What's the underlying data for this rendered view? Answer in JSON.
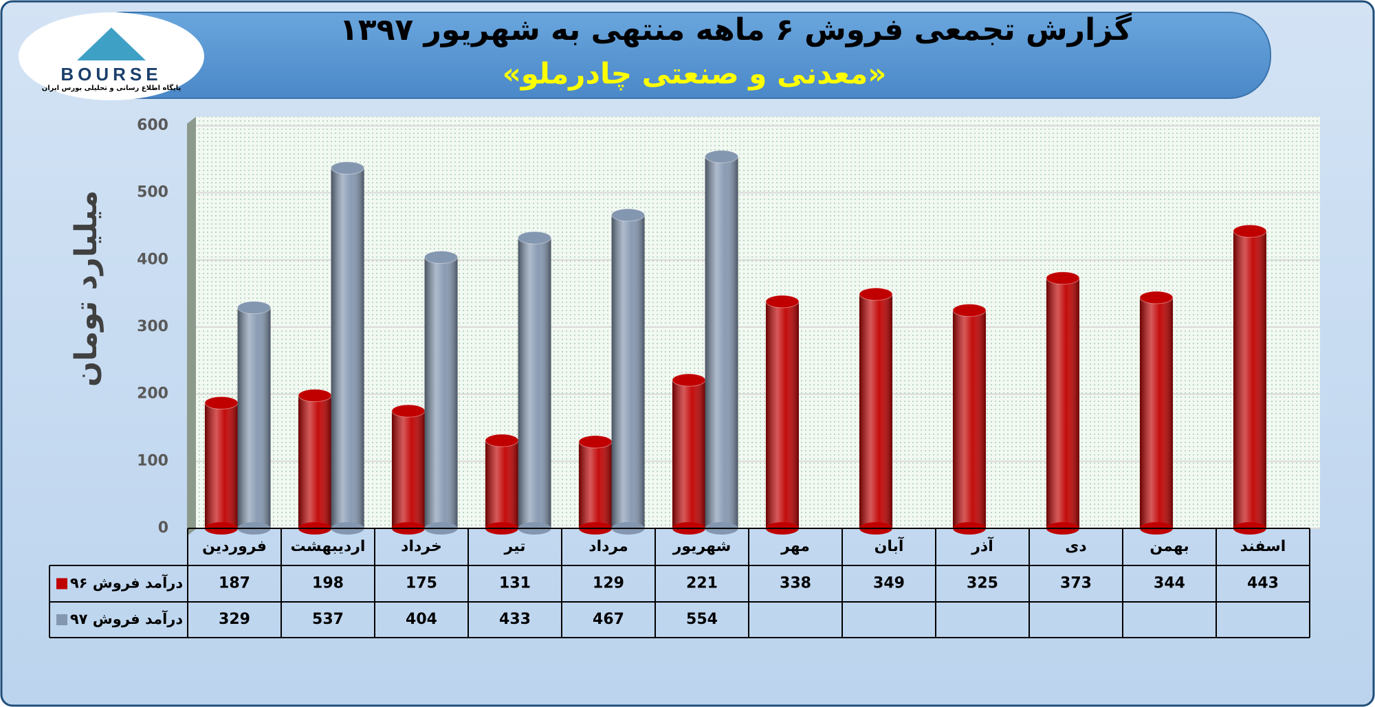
{
  "logo": {
    "name": "BOURSE",
    "tagline": "پایگاه اطلاع رسانی و تحلیلی بورس ایران"
  },
  "chart_data": {
    "type": "bar",
    "title": "گزارش تجمعی فروش ۶ ماهه منتهی به شهریور ۱۳۹۷",
    "subtitle": "«معدنی و صنعتی چادرملو»",
    "y_label": "میلیارد تومان",
    "categories": [
      "فروردین",
      "اردیبهشت",
      "خرداد",
      "تیر",
      "مرداد",
      "شهریور",
      "مهر",
      "آبان",
      "آذر",
      "دی",
      "بهمن",
      "اسفند"
    ],
    "series": [
      {
        "name": "درآمد فروش ۹۶",
        "color": "#c00000",
        "values": [
          187,
          198,
          175,
          131,
          129,
          221,
          338,
          349,
          325,
          373,
          344,
          443
        ]
      },
      {
        "name": "درآمد فروش ۹۷",
        "color": "#8497b0",
        "values": [
          329,
          537,
          404,
          433,
          467,
          554,
          null,
          null,
          null,
          null,
          null,
          null
        ]
      }
    ],
    "ylim": [
      0,
      600
    ],
    "yticks": [
      0,
      100,
      200,
      300,
      400,
      500,
      600
    ],
    "grid": true
  }
}
